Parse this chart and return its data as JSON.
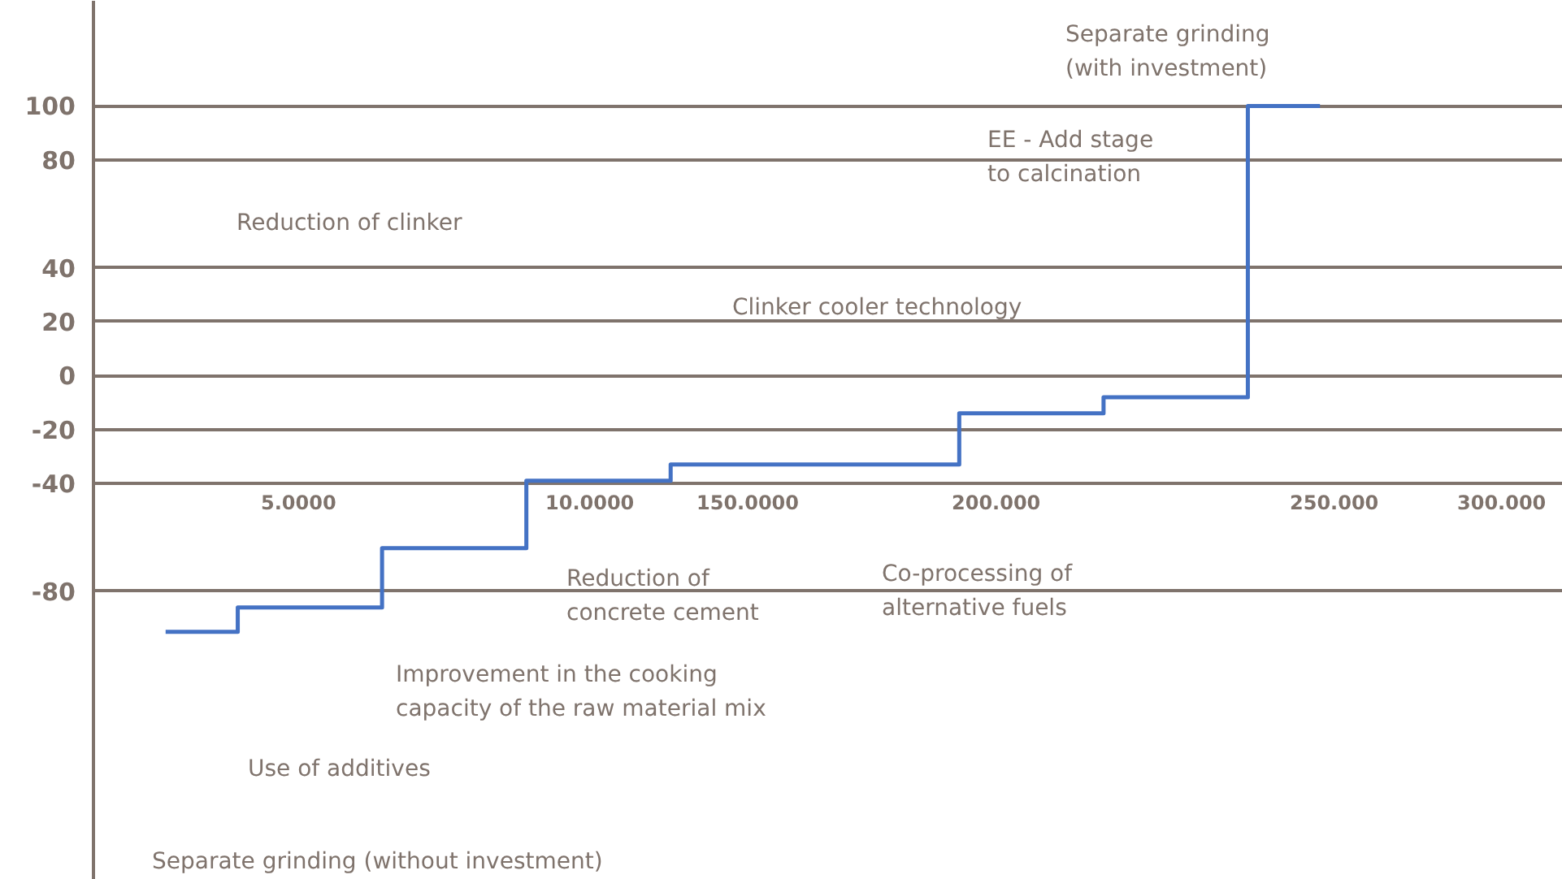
{
  "chart_data": {
    "type": "step",
    "categories": [
      null,
      null,
      null,
      null,
      null,
      null,
      null,
      null,
      null
    ],
    "series": [
      {
        "color": "#4472c4",
        "values": [
          -95,
          -86,
          -64,
          -39,
          -33,
          -33,
          -14,
          -8,
          100
        ]
      }
    ],
    "ylim": [
      -187,
      139
    ],
    "yticks": [
      100,
      80,
      40,
      20,
      0,
      -20,
      -40,
      -80
    ],
    "grid": "y",
    "marker": "none",
    "line_style": "solid",
    "annotations": [
      "Separate grinding (without investment)",
      "Use of additives",
      "Improvement in the cooking\ncapacity of the raw material mix",
      "Reduction of clinker",
      "Reduction of\nconcrete cement",
      "Co-processing of\nalternative fuels",
      "Clinker cooler technology",
      "EE - Add stage\nto calcination",
      "Separate grinding\n(with investment)",
      "5.0000",
      "10.0000",
      "150.0000",
      "200.000",
      "250.000",
      "300.000"
    ]
  }
}
